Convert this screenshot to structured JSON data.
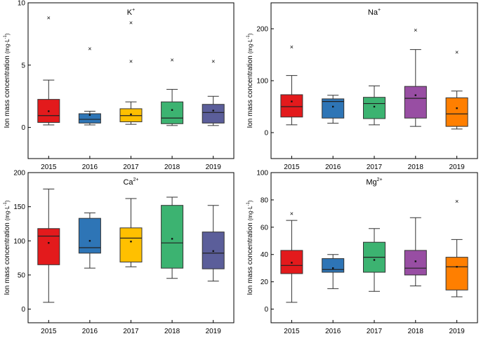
{
  "chart_data": [
    {
      "type": "box",
      "title_base": "K",
      "title_sup": "+",
      "ylabel_main": "Ion mass concentration",
      "ylabel_unit": "(mg·L",
      "ylabel_unit_sup": "-1",
      "ylabel_unit_close": ")",
      "ylim": [
        -2.5,
        10
      ],
      "yticks": [
        0,
        5,
        10
      ],
      "categories": [
        "2015",
        "2016",
        "2017",
        "2018",
        "2019"
      ],
      "colors": [
        "#e31a1c",
        "#2e75b6",
        "#ffc000",
        "#3cb371",
        "#5b5e9a"
      ],
      "boxes": [
        {
          "min": 0.2,
          "q1": 0.4,
          "median": 0.95,
          "q3": 2.25,
          "max": 3.8,
          "mean": 1.3,
          "outliers": [
            8.8
          ]
        },
        {
          "min": 0.2,
          "q1": 0.35,
          "median": 0.65,
          "q3": 1.1,
          "max": 1.3,
          "mean": 1.0,
          "outliers": [
            6.3
          ]
        },
        {
          "min": 0.25,
          "q1": 0.45,
          "median": 0.95,
          "q3": 1.5,
          "max": 2.05,
          "mean": 1.05,
          "outliers": [
            5.3,
            8.4
          ]
        },
        {
          "min": 0.15,
          "q1": 0.3,
          "median": 0.75,
          "q3": 2.05,
          "max": 3.05,
          "mean": 1.4,
          "outliers": [
            5.4
          ]
        },
        {
          "min": 0.15,
          "q1": 0.35,
          "median": 1.2,
          "q3": 1.85,
          "max": 2.5,
          "mean": 1.35,
          "outliers": [
            5.3
          ]
        }
      ]
    },
    {
      "type": "box",
      "title_base": "Na",
      "title_sup": "+",
      "ylabel_main": "Ion mass concentration",
      "ylabel_unit": "(mg·L",
      "ylabel_unit_sup": "-1",
      "ylabel_unit_close": ")",
      "ylim": [
        -50,
        250
      ],
      "yticks": [
        0,
        100,
        200
      ],
      "categories": [
        "2015",
        "2016",
        "2017",
        "2018",
        "2019"
      ],
      "colors": [
        "#e31a1c",
        "#2e75b6",
        "#3cb371",
        "#984ea3",
        "#ff7f00"
      ],
      "boxes": [
        {
          "min": 15,
          "q1": 30,
          "median": 50,
          "q3": 73,
          "max": 110,
          "mean": 60,
          "outliers": [
            165
          ]
        },
        {
          "min": 18,
          "q1": 28,
          "median": 60,
          "q3": 65,
          "max": 72,
          "mean": 50,
          "outliers": []
        },
        {
          "min": 15,
          "q1": 27,
          "median": 56,
          "q3": 68,
          "max": 90,
          "mean": 50,
          "outliers": []
        },
        {
          "min": 12,
          "q1": 28,
          "median": 66,
          "q3": 89,
          "max": 160,
          "mean": 72,
          "outliers": [
            197
          ]
        },
        {
          "min": 7,
          "q1": 12,
          "median": 36,
          "q3": 67,
          "max": 80,
          "mean": 47,
          "outliers": [
            155
          ]
        }
      ]
    },
    {
      "type": "box",
      "title_base": "Ca",
      "title_sup": "2+",
      "ylabel_main": "Ion mass concentration",
      "ylabel_unit": "(mg·L",
      "ylabel_unit_sup": "-1",
      "ylabel_unit_close": ")",
      "ylim": [
        -20,
        200
      ],
      "yticks": [
        0,
        50,
        100,
        150,
        200
      ],
      "categories": [
        "2015",
        "2016",
        "2017",
        "2018",
        "2019"
      ],
      "colors": [
        "#e31a1c",
        "#2e75b6",
        "#ffc000",
        "#3cb371",
        "#5b5e9a"
      ],
      "boxes": [
        {
          "min": 10,
          "q1": 65,
          "median": 107,
          "q3": 118,
          "max": 176,
          "mean": 97,
          "outliers": []
        },
        {
          "min": 60,
          "q1": 82,
          "median": 90,
          "q3": 133,
          "max": 141,
          "mean": 100,
          "outliers": []
        },
        {
          "min": 62,
          "q1": 69,
          "median": 104,
          "q3": 119,
          "max": 162,
          "mean": 99,
          "outliers": []
        },
        {
          "min": 45,
          "q1": 60,
          "median": 97,
          "q3": 152,
          "max": 164,
          "mean": 103,
          "outliers": []
        },
        {
          "min": 41,
          "q1": 59,
          "median": 82,
          "q3": 113,
          "max": 152,
          "mean": 85,
          "outliers": []
        }
      ]
    },
    {
      "type": "box",
      "title_base": "Mg",
      "title_sup": "2+",
      "ylabel_main": "Ion mass concentration",
      "ylabel_unit": "(mg·L",
      "ylabel_unit_sup": "-1",
      "ylabel_unit_close": ")",
      "ylim": [
        -10,
        100
      ],
      "yticks": [
        0,
        20,
        40,
        60,
        80,
        100
      ],
      "categories": [
        "2015",
        "2016",
        "2017",
        "2018",
        "2019"
      ],
      "colors": [
        "#e31a1c",
        "#2e75b6",
        "#3cb371",
        "#984ea3",
        "#ff7f00"
      ],
      "boxes": [
        {
          "min": 5,
          "q1": 26,
          "median": 32,
          "q3": 43,
          "max": 65,
          "mean": 34,
          "outliers": [
            70
          ]
        },
        {
          "min": 15,
          "q1": 27,
          "median": 29,
          "q3": 37,
          "max": 40,
          "mean": 30,
          "outliers": []
        },
        {
          "min": 13,
          "q1": 27,
          "median": 38,
          "q3": 49,
          "max": 59,
          "mean": 36,
          "outliers": []
        },
        {
          "min": 17,
          "q1": 25,
          "median": 30,
          "q3": 43,
          "max": 67,
          "mean": 35,
          "outliers": []
        },
        {
          "min": 9,
          "q1": 14,
          "median": 31,
          "q3": 38,
          "max": 51,
          "mean": 31,
          "outliers": [
            79
          ]
        }
      ]
    }
  ]
}
